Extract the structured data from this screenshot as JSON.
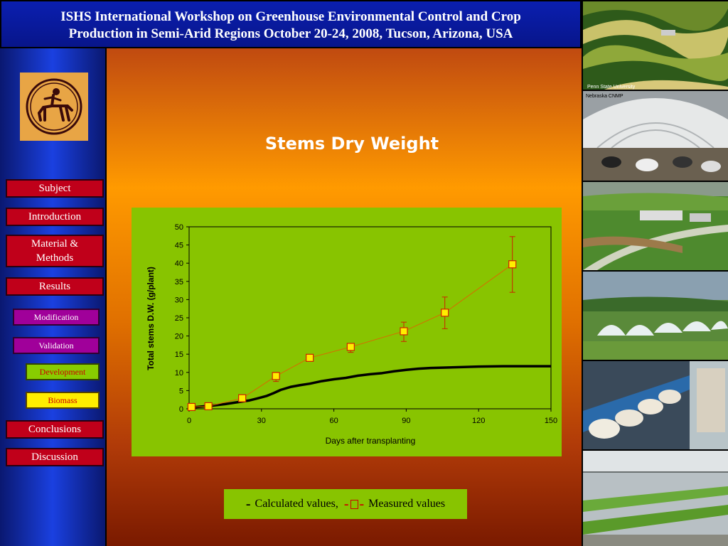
{
  "header": {
    "title_line1": "ISHS International Workshop on Greenhouse Environmental Control and Crop",
    "title_line2": "Production in Semi-Arid Regions October 20-24, 2008, Tucson, Arizona, USA"
  },
  "logo": {
    "icon": "centaur-logo-icon"
  },
  "nav": {
    "subject": "Subject",
    "introduction": "Introduction",
    "material_line1": "Material &",
    "material_line2": "Methods",
    "results": "Results",
    "modification": "Modification",
    "validation": "Validation",
    "development": "Development",
    "biomass": "Biomass",
    "conclusions": "Conclusions",
    "discussion": "Discussion"
  },
  "slide": {
    "title": "Stems Dry Weight"
  },
  "legend": {
    "calculated": "Calculated values,",
    "measured": "Measured values"
  },
  "photos": {
    "caption_line1": "Penn State University",
    "caption_line2": "Nebraska CNMP"
  },
  "colors": {
    "header_bg": "#0a1fb0",
    "chart_bg": "#88c400",
    "measured": "#cc0000",
    "marker_fill": "#ffee00"
  },
  "chart_data": {
    "type": "line",
    "title": "",
    "xlabel": "Days after transplanting",
    "ylabel": "Total stems D.W. (g/plant)",
    "xlim": [
      0,
      150
    ],
    "ylim": [
      0,
      50
    ],
    "xticks": [
      0,
      30,
      60,
      90,
      120,
      150
    ],
    "yticks": [
      0,
      5,
      10,
      15,
      20,
      25,
      30,
      35,
      40,
      45,
      50
    ],
    "grid": false,
    "series": [
      {
        "name": "Calculated values",
        "style": "line",
        "color": "#000000",
        "x": [
          0,
          5,
          10,
          15,
          20,
          25,
          28,
          32,
          35,
          38,
          42,
          46,
          50,
          55,
          60,
          65,
          70,
          75,
          80,
          85,
          90,
          95,
          100,
          110,
          120,
          130,
          140,
          150
        ],
        "y": [
          0.3,
          0.6,
          0.9,
          1.3,
          1.8,
          2.3,
          2.8,
          3.5,
          4.3,
          5.2,
          6.0,
          6.5,
          6.9,
          7.6,
          8.1,
          8.5,
          9.1,
          9.5,
          9.8,
          10.3,
          10.7,
          11.0,
          11.2,
          11.4,
          11.6,
          11.7,
          11.7,
          11.7
        ]
      },
      {
        "name": "Measured values",
        "style": "line+markers",
        "color": "#cc0000",
        "x": [
          1,
          8,
          22,
          36,
          50,
          67,
          89,
          106,
          134
        ],
        "y": [
          0.5,
          0.7,
          2.9,
          9.0,
          14.0,
          17.0,
          21.3,
          26.4,
          39.7
        ],
        "err_low": [
          0.3,
          0.6,
          2.7,
          7.5,
          13.2,
          15.5,
          18.5,
          22.0,
          32.0
        ],
        "err_high": [
          0.7,
          0.9,
          3.2,
          10.0,
          14.6,
          17.8,
          23.8,
          30.7,
          47.3
        ]
      }
    ]
  }
}
